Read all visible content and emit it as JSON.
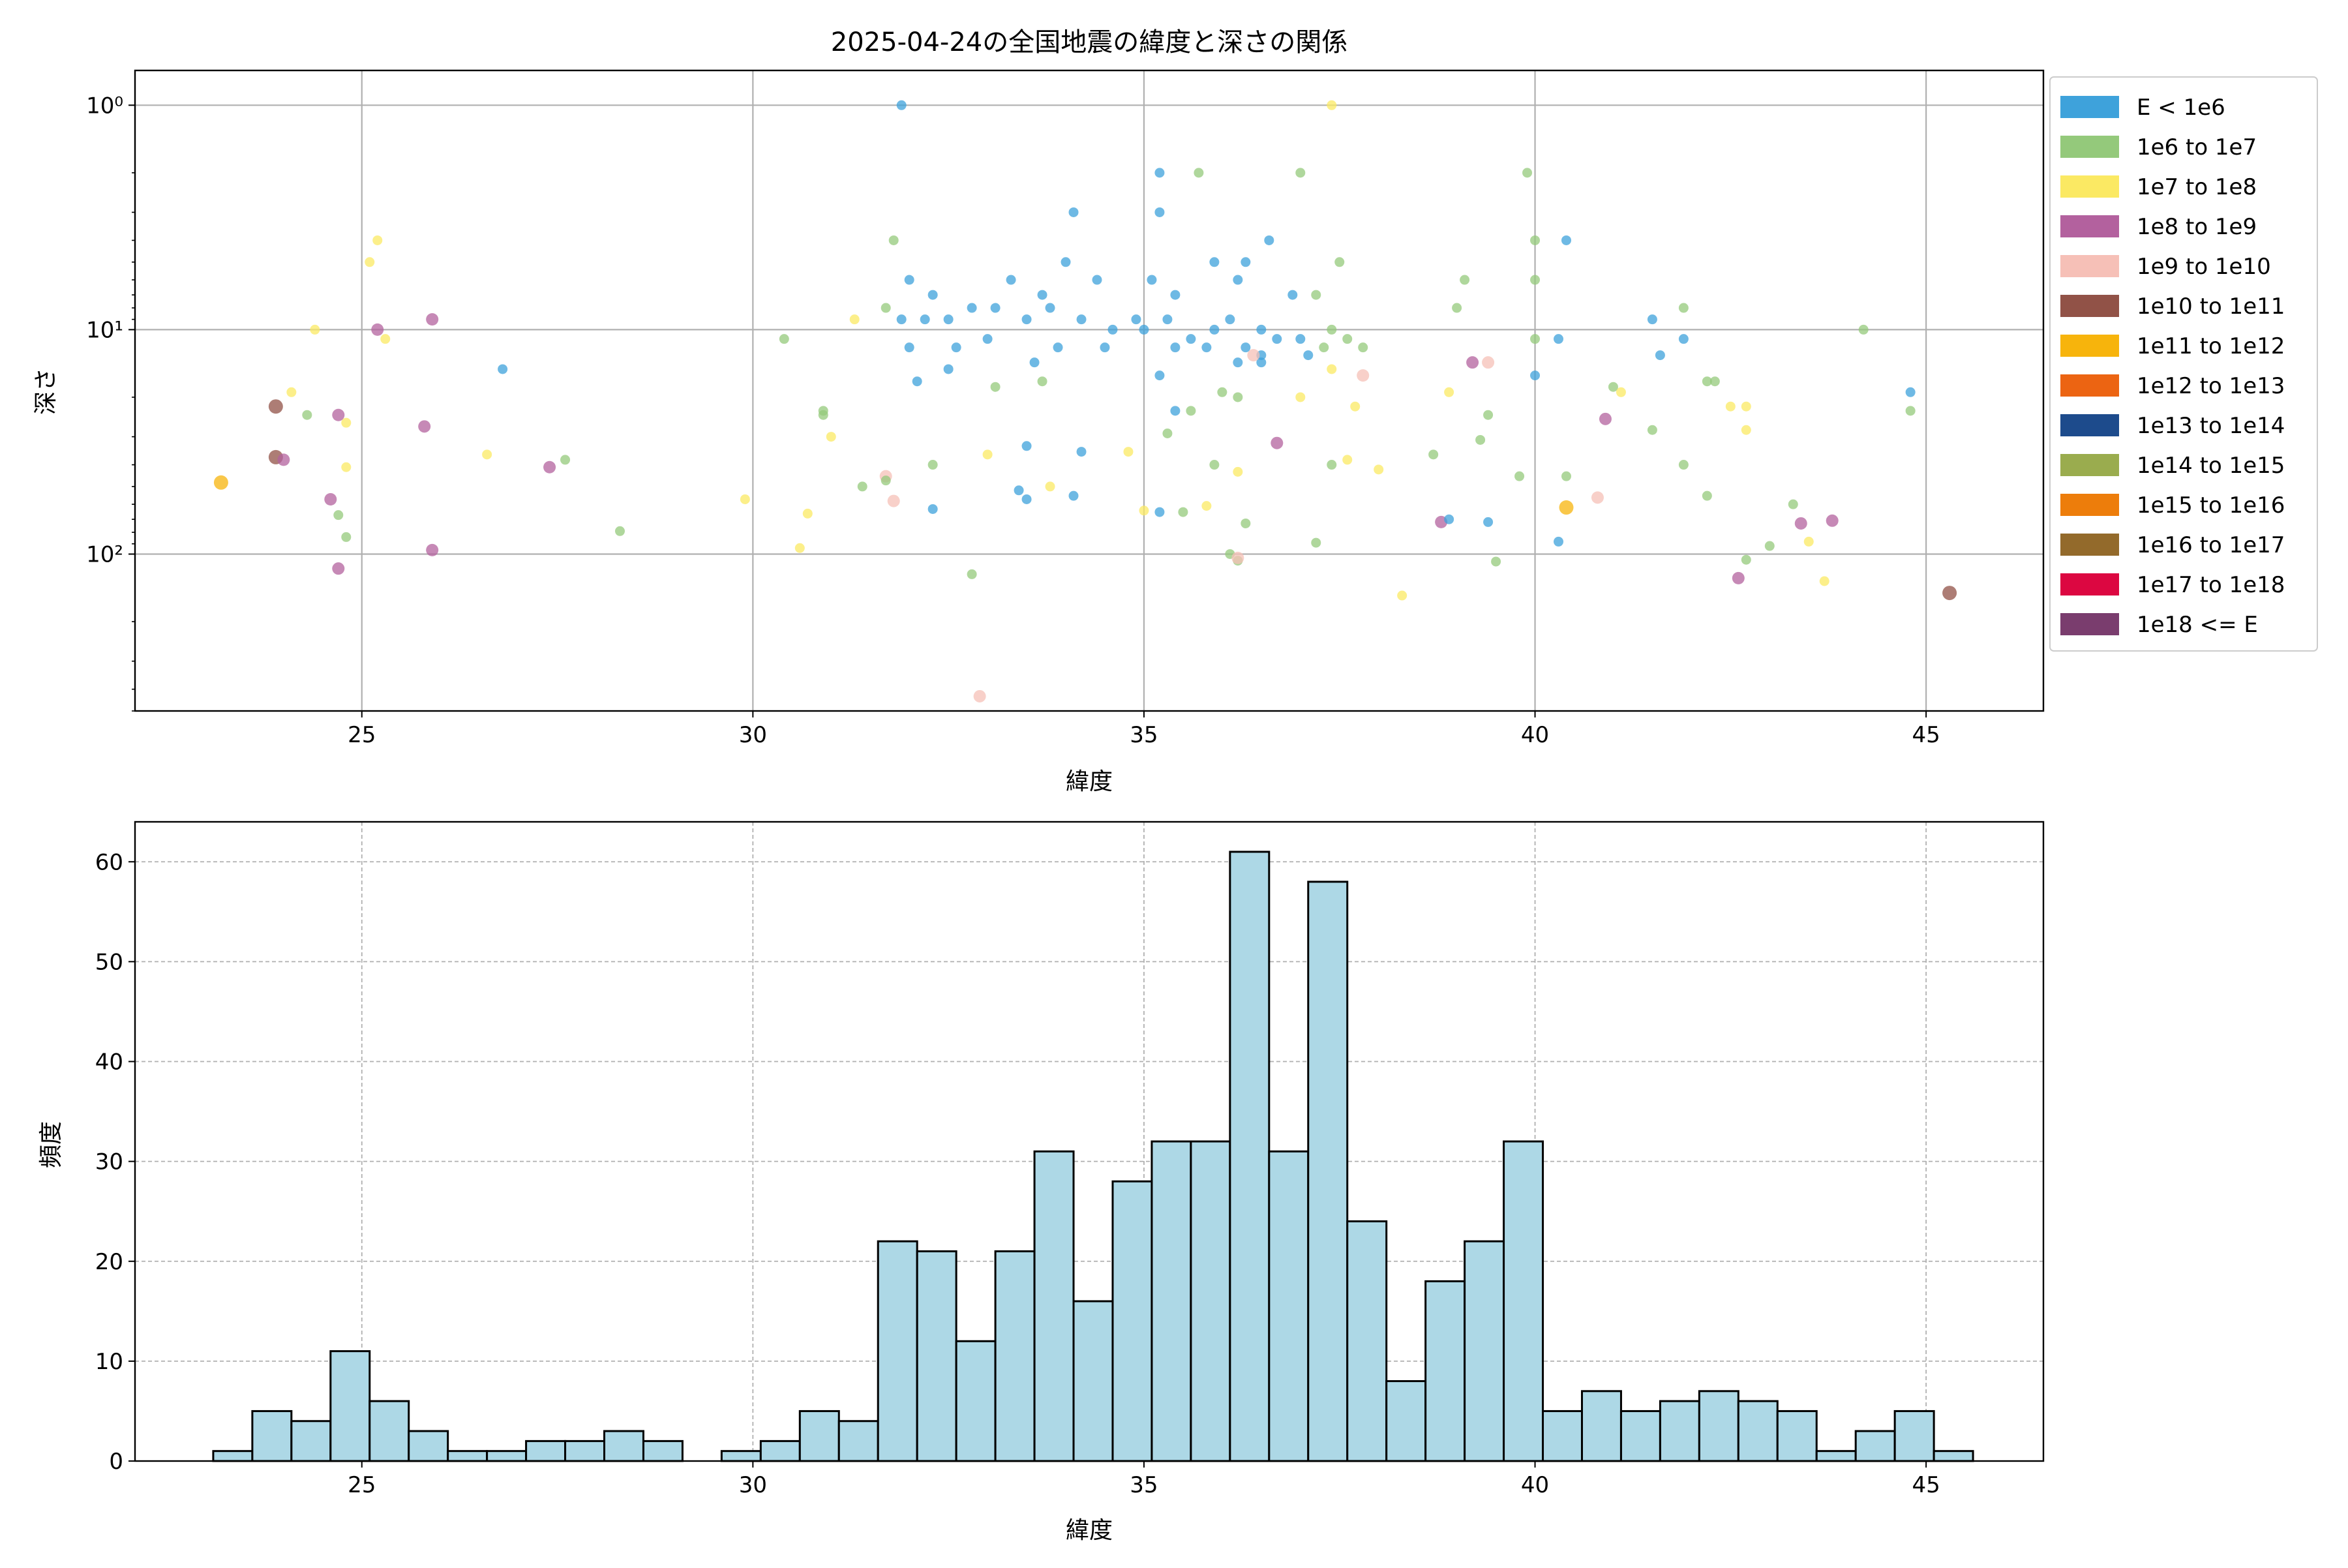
{
  "chart_data": [
    {
      "type": "scatter",
      "title": "2025-04-24の全国地震の緯度と深さの関係",
      "xlabel": "緯度",
      "ylabel": "深さ",
      "xlim": [
        22.1,
        46.5
      ],
      "ylim": [
        500,
        0.7
      ],
      "yscale": "log-inverted",
      "xticks": [
        25,
        30,
        35,
        40,
        45
      ],
      "yticks": [
        {
          "value": 1,
          "label": "10⁰"
        },
        {
          "value": 10,
          "label": "10¹"
        },
        {
          "value": 100,
          "label": "10²"
        }
      ],
      "grid": true,
      "legend_position": "outside-right",
      "legend": [
        {
          "label": "E < 1e6",
          "color": "#3ea2db"
        },
        {
          "label": "1e6 to 1e7",
          "color": "#94c97b"
        },
        {
          "label": "1e7 to 1e8",
          "color": "#fbe963"
        },
        {
          "label": "1e8 to 1e9",
          "color": "#b3619e"
        },
        {
          "label": "1e9 to 1e10",
          "color": "#f6c0b7"
        },
        {
          "label": "1e10 to 1e11",
          "color": "#915247"
        },
        {
          "label": "1e11 to 1e12",
          "color": "#f7b40c"
        },
        {
          "label": "1e12 to 1e13",
          "color": "#ec6412"
        },
        {
          "label": "1e13 to 1e14",
          "color": "#1d4b8c"
        },
        {
          "label": "1e14 to 1e15",
          "color": "#9aac4e"
        },
        {
          "label": "1e15 to 1e16",
          "color": "#ed7d0b"
        },
        {
          "label": "1e16 to 1e17",
          "color": "#936a2b"
        },
        {
          "label": "1e17 to 1e18",
          "color": "#dc0741"
        },
        {
          "label": "1e18 <= E",
          "color": "#7a3d6e"
        }
      ],
      "points": [
        {
          "x": 31.9,
          "y": 1,
          "c": 0
        },
        {
          "x": 35.2,
          "y": 2,
          "c": 0
        },
        {
          "x": 35.7,
          "y": 2,
          "c": 1
        },
        {
          "x": 37.0,
          "y": 2,
          "c": 1
        },
        {
          "x": 39.9,
          "y": 2,
          "c": 1
        },
        {
          "x": 37.4,
          "y": 1,
          "c": 2
        },
        {
          "x": 34.1,
          "y": 3,
          "c": 0
        },
        {
          "x": 35.2,
          "y": 3,
          "c": 0
        },
        {
          "x": 34.0,
          "y": 5,
          "c": 0
        },
        {
          "x": 36.6,
          "y": 4,
          "c": 0
        },
        {
          "x": 40.4,
          "y": 4,
          "c": 0
        },
        {
          "x": 40.0,
          "y": 4,
          "c": 1
        },
        {
          "x": 31.8,
          "y": 4,
          "c": 1
        },
        {
          "x": 25.2,
          "y": 4,
          "c": 2
        },
        {
          "x": 25.1,
          "y": 5,
          "c": 2
        },
        {
          "x": 36.3,
          "y": 5,
          "c": 0
        },
        {
          "x": 35.9,
          "y": 5,
          "c": 0
        },
        {
          "x": 37.5,
          "y": 5,
          "c": 1
        },
        {
          "x": 32.0,
          "y": 6,
          "c": 0
        },
        {
          "x": 33.3,
          "y": 6,
          "c": 0
        },
        {
          "x": 34.4,
          "y": 6,
          "c": 0
        },
        {
          "x": 35.1,
          "y": 6,
          "c": 0
        },
        {
          "x": 36.2,
          "y": 6,
          "c": 0
        },
        {
          "x": 40.0,
          "y": 6,
          "c": 1
        },
        {
          "x": 39.1,
          "y": 6,
          "c": 1
        },
        {
          "x": 32.3,
          "y": 7,
          "c": 0
        },
        {
          "x": 33.7,
          "y": 7,
          "c": 0
        },
        {
          "x": 35.4,
          "y": 7,
          "c": 0
        },
        {
          "x": 36.9,
          "y": 7,
          "c": 0
        },
        {
          "x": 37.2,
          "y": 7,
          "c": 1
        },
        {
          "x": 25.9,
          "y": 9,
          "c": 3
        },
        {
          "x": 25.2,
          "y": 10,
          "c": 3
        },
        {
          "x": 24.4,
          "y": 10,
          "c": 2
        },
        {
          "x": 25.3,
          "y": 11,
          "c": 2
        },
        {
          "x": 31.3,
          "y": 9,
          "c": 2
        },
        {
          "x": 30.4,
          "y": 11,
          "c": 1
        },
        {
          "x": 31.7,
          "y": 8,
          "c": 1
        },
        {
          "x": 31.9,
          "y": 9,
          "c": 0
        },
        {
          "x": 32.2,
          "y": 9,
          "c": 0
        },
        {
          "x": 32.5,
          "y": 9,
          "c": 0
        },
        {
          "x": 32.8,
          "y": 8,
          "c": 0
        },
        {
          "x": 33.1,
          "y": 8,
          "c": 0
        },
        {
          "x": 33.5,
          "y": 9,
          "c": 0
        },
        {
          "x": 33.8,
          "y": 8,
          "c": 0
        },
        {
          "x": 34.2,
          "y": 9,
          "c": 0
        },
        {
          "x": 34.6,
          "y": 10,
          "c": 0
        },
        {
          "x": 34.9,
          "y": 9,
          "c": 0
        },
        {
          "x": 35.0,
          "y": 10,
          "c": 0
        },
        {
          "x": 35.3,
          "y": 9,
          "c": 0
        },
        {
          "x": 35.6,
          "y": 11,
          "c": 0
        },
        {
          "x": 35.9,
          "y": 10,
          "c": 0
        },
        {
          "x": 36.1,
          "y": 9,
          "c": 0
        },
        {
          "x": 36.5,
          "y": 10,
          "c": 0
        },
        {
          "x": 36.7,
          "y": 11,
          "c": 0
        },
        {
          "x": 37.0,
          "y": 11,
          "c": 0
        },
        {
          "x": 37.4,
          "y": 10,
          "c": 1
        },
        {
          "x": 37.6,
          "y": 11,
          "c": 1
        },
        {
          "x": 37.8,
          "y": 12,
          "c": 1
        },
        {
          "x": 39.0,
          "y": 8,
          "c": 1
        },
        {
          "x": 40.0,
          "y": 11,
          "c": 1
        },
        {
          "x": 40.3,
          "y": 11,
          "c": 0
        },
        {
          "x": 41.5,
          "y": 9,
          "c": 0
        },
        {
          "x": 41.9,
          "y": 11,
          "c": 0
        },
        {
          "x": 41.9,
          "y": 8,
          "c": 1
        },
        {
          "x": 44.2,
          "y": 10,
          "c": 1
        },
        {
          "x": 32.0,
          "y": 12,
          "c": 0
        },
        {
          "x": 32.6,
          "y": 12,
          "c": 0
        },
        {
          "x": 33.0,
          "y": 11,
          "c": 0
        },
        {
          "x": 33.9,
          "y": 12,
          "c": 0
        },
        {
          "x": 34.5,
          "y": 12,
          "c": 0
        },
        {
          "x": 35.4,
          "y": 12,
          "c": 0
        },
        {
          "x": 35.8,
          "y": 12,
          "c": 0
        },
        {
          "x": 36.3,
          "y": 12,
          "c": 0
        },
        {
          "x": 36.5,
          "y": 13,
          "c": 0
        },
        {
          "x": 37.1,
          "y": 13,
          "c": 0
        },
        {
          "x": 37.3,
          "y": 12,
          "c": 1
        },
        {
          "x": 32.1,
          "y": 17,
          "c": 0
        },
        {
          "x": 32.5,
          "y": 15,
          "c": 0
        },
        {
          "x": 33.6,
          "y": 14,
          "c": 0
        },
        {
          "x": 35.2,
          "y": 16,
          "c": 0
        },
        {
          "x": 36.2,
          "y": 14,
          "c": 0
        },
        {
          "x": 36.5,
          "y": 14,
          "c": 0
        },
        {
          "x": 36.4,
          "y": 13,
          "c": 4
        },
        {
          "x": 37.4,
          "y": 15,
          "c": 2
        },
        {
          "x": 37.8,
          "y": 16,
          "c": 4
        },
        {
          "x": 39.4,
          "y": 14,
          "c": 4
        },
        {
          "x": 39.2,
          "y": 14,
          "c": 3
        },
        {
          "x": 40.0,
          "y": 16,
          "c": 0
        },
        {
          "x": 41.6,
          "y": 13,
          "c": 0
        },
        {
          "x": 42.2,
          "y": 17,
          "c": 1
        },
        {
          "x": 23.9,
          "y": 22,
          "c": 5
        },
        {
          "x": 24.1,
          "y": 19,
          "c": 2
        },
        {
          "x": 24.3,
          "y": 24,
          "c": 1
        },
        {
          "x": 24.7,
          "y": 24,
          "c": 3
        },
        {
          "x": 24.8,
          "y": 26,
          "c": 2
        },
        {
          "x": 25.8,
          "y": 27,
          "c": 3
        },
        {
          "x": 26.8,
          "y": 15,
          "c": 0
        },
        {
          "x": 30.9,
          "y": 24,
          "c": 1
        },
        {
          "x": 30.9,
          "y": 23,
          "c": 1
        },
        {
          "x": 31.0,
          "y": 30,
          "c": 2
        },
        {
          "x": 33.1,
          "y": 18,
          "c": 1
        },
        {
          "x": 33.7,
          "y": 17,
          "c": 1
        },
        {
          "x": 35.4,
          "y": 23,
          "c": 0
        },
        {
          "x": 35.6,
          "y": 23,
          "c": 1
        },
        {
          "x": 36.0,
          "y": 19,
          "c": 1
        },
        {
          "x": 36.2,
          "y": 20,
          "c": 1
        },
        {
          "x": 37.0,
          "y": 20,
          "c": 2
        },
        {
          "x": 37.7,
          "y": 22,
          "c": 2
        },
        {
          "x": 38.9,
          "y": 19,
          "c": 2
        },
        {
          "x": 39.4,
          "y": 24,
          "c": 1
        },
        {
          "x": 41.0,
          "y": 18,
          "c": 1
        },
        {
          "x": 41.1,
          "y": 19,
          "c": 2
        },
        {
          "x": 40.9,
          "y": 25,
          "c": 3
        },
        {
          "x": 41.5,
          "y": 28,
          "c": 1
        },
        {
          "x": 42.3,
          "y": 17,
          "c": 1
        },
        {
          "x": 42.5,
          "y": 22,
          "c": 2
        },
        {
          "x": 42.7,
          "y": 22,
          "c": 2
        },
        {
          "x": 42.7,
          "y": 28,
          "c": 2
        },
        {
          "x": 23.9,
          "y": 37,
          "c": 5
        },
        {
          "x": 24.0,
          "y": 38,
          "c": 3
        },
        {
          "x": 24.8,
          "y": 41,
          "c": 2
        },
        {
          "x": 26.6,
          "y": 36,
          "c": 2
        },
        {
          "x": 27.4,
          "y": 41,
          "c": 3
        },
        {
          "x": 27.6,
          "y": 38,
          "c": 1
        },
        {
          "x": 31.7,
          "y": 45,
          "c": 4
        },
        {
          "x": 31.7,
          "y": 47,
          "c": 1
        },
        {
          "x": 31.4,
          "y": 50,
          "c": 1
        },
        {
          "x": 32.3,
          "y": 40,
          "c": 1
        },
        {
          "x": 33.0,
          "y": 36,
          "c": 2
        },
        {
          "x": 33.5,
          "y": 33,
          "c": 0
        },
        {
          "x": 34.2,
          "y": 35,
          "c": 0
        },
        {
          "x": 34.8,
          "y": 35,
          "c": 2
        },
        {
          "x": 35.3,
          "y": 29,
          "c": 1
        },
        {
          "x": 35.9,
          "y": 40,
          "c": 1
        },
        {
          "x": 36.2,
          "y": 43,
          "c": 2
        },
        {
          "x": 37.4,
          "y": 40,
          "c": 1
        },
        {
          "x": 37.6,
          "y": 38,
          "c": 2
        },
        {
          "x": 38.0,
          "y": 42,
          "c": 2
        },
        {
          "x": 38.7,
          "y": 36,
          "c": 1
        },
        {
          "x": 39.3,
          "y": 31,
          "c": 1
        },
        {
          "x": 39.8,
          "y": 45,
          "c": 1
        },
        {
          "x": 40.4,
          "y": 45,
          "c": 1
        },
        {
          "x": 41.9,
          "y": 40,
          "c": 1
        },
        {
          "x": 42.2,
          "y": 55,
          "c": 1
        },
        {
          "x": 23.2,
          "y": 48,
          "c": 6
        },
        {
          "x": 24.6,
          "y": 57,
          "c": 3
        },
        {
          "x": 24.7,
          "y": 67,
          "c": 1
        },
        {
          "x": 24.8,
          "y": 84,
          "c": 1
        },
        {
          "x": 24.7,
          "y": 116,
          "c": 3
        },
        {
          "x": 25.9,
          "y": 96,
          "c": 3
        },
        {
          "x": 28.3,
          "y": 79,
          "c": 1
        },
        {
          "x": 29.9,
          "y": 57,
          "c": 2
        },
        {
          "x": 30.6,
          "y": 94,
          "c": 2
        },
        {
          "x": 30.7,
          "y": 66,
          "c": 2
        },
        {
          "x": 31.8,
          "y": 58,
          "c": 4
        },
        {
          "x": 32.3,
          "y": 63,
          "c": 0
        },
        {
          "x": 32.8,
          "y": 123,
          "c": 1
        },
        {
          "x": 33.4,
          "y": 52,
          "c": 0
        },
        {
          "x": 33.5,
          "y": 57,
          "c": 0
        },
        {
          "x": 33.8,
          "y": 50,
          "c": 2
        },
        {
          "x": 34.1,
          "y": 55,
          "c": 0
        },
        {
          "x": 35.2,
          "y": 65,
          "c": 0
        },
        {
          "x": 35.5,
          "y": 65,
          "c": 1
        },
        {
          "x": 35.8,
          "y": 61,
          "c": 2
        },
        {
          "x": 36.1,
          "y": 100,
          "c": 1
        },
        {
          "x": 36.2,
          "y": 107,
          "c": 1
        },
        {
          "x": 36.2,
          "y": 104,
          "c": 4
        },
        {
          "x": 36.3,
          "y": 73,
          "c": 1
        },
        {
          "x": 37.2,
          "y": 89,
          "c": 1
        },
        {
          "x": 38.3,
          "y": 153,
          "c": 2
        },
        {
          "x": 38.8,
          "y": 72,
          "c": 3
        },
        {
          "x": 38.9,
          "y": 70,
          "c": 0
        },
        {
          "x": 40.4,
          "y": 62,
          "c": 6
        },
        {
          "x": 40.8,
          "y": 56,
          "c": 4
        },
        {
          "x": 40.3,
          "y": 88,
          "c": 0
        },
        {
          "x": 39.4,
          "y": 72,
          "c": 0
        },
        {
          "x": 39.5,
          "y": 108,
          "c": 1
        },
        {
          "x": 42.6,
          "y": 128,
          "c": 3
        },
        {
          "x": 42.7,
          "y": 106,
          "c": 1
        },
        {
          "x": 43.0,
          "y": 92,
          "c": 1
        },
        {
          "x": 43.3,
          "y": 60,
          "c": 1
        },
        {
          "x": 43.4,
          "y": 73,
          "c": 3
        },
        {
          "x": 43.5,
          "y": 88,
          "c": 2
        },
        {
          "x": 43.7,
          "y": 132,
          "c": 2
        },
        {
          "x": 43.8,
          "y": 71,
          "c": 3
        },
        {
          "x": 44.8,
          "y": 19,
          "c": 0
        },
        {
          "x": 44.8,
          "y": 23,
          "c": 1
        },
        {
          "x": 45.3,
          "y": 149,
          "c": 5
        },
        {
          "x": 32.9,
          "y": 430,
          "c": 4
        },
        {
          "x": 35.0,
          "y": 64,
          "c": 2
        },
        {
          "x": 36.7,
          "y": 32,
          "c": 3
        }
      ]
    },
    {
      "type": "bar",
      "title": "",
      "xlabel": "緯度",
      "ylabel": "頻度",
      "xlim": [
        22.1,
        46.5
      ],
      "ylim": [
        0,
        64
      ],
      "xticks": [
        25,
        30,
        35,
        40,
        45
      ],
      "yticks": [
        0,
        10,
        20,
        30,
        40,
        50,
        60
      ],
      "grid": true,
      "bar_color": "#add8e6",
      "edge_color": "#000000",
      "bin_start": 23.1,
      "bin_width": 0.5,
      "values": [
        1,
        5,
        4,
        11,
        6,
        3,
        1,
        1,
        2,
        2,
        3,
        2,
        0,
        1,
        2,
        5,
        4,
        22,
        21,
        12,
        21,
        31,
        16,
        28,
        32,
        32,
        61,
        31,
        58,
        24,
        8,
        18,
        22,
        32,
        5,
        7,
        5,
        6,
        7,
        6,
        5,
        1,
        3,
        5,
        1
      ]
    }
  ]
}
